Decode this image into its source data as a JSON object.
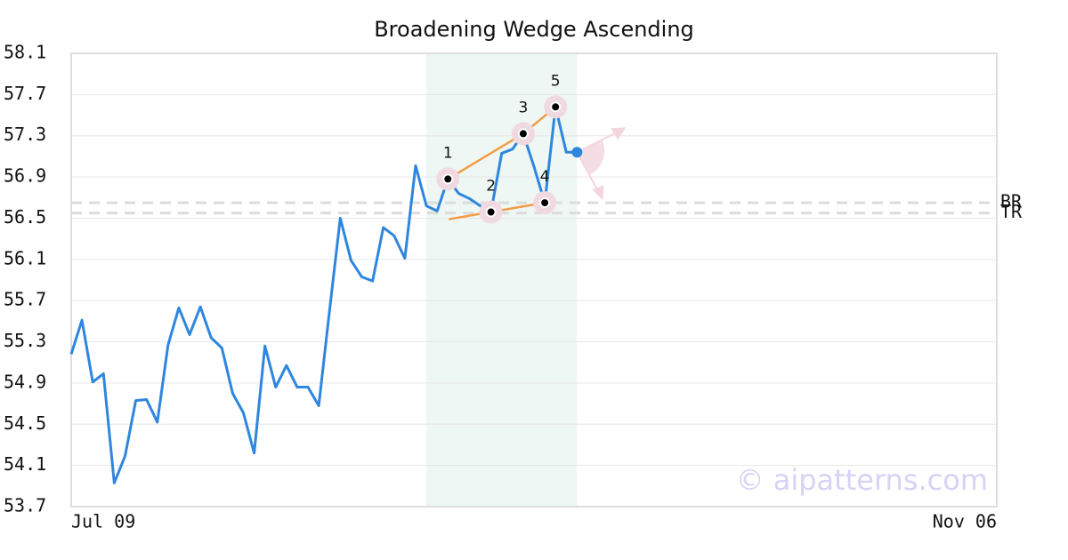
{
  "chart_data": {
    "type": "line",
    "title": "Broadening Wedge Ascending",
    "x": [
      0,
      1,
      2,
      3,
      4,
      5,
      6,
      7,
      8,
      9,
      10,
      11,
      12,
      13,
      14,
      15,
      16,
      17,
      18,
      19,
      20,
      21,
      22,
      23,
      24,
      25,
      26,
      27,
      28,
      29,
      30,
      31,
      32,
      33,
      34,
      35,
      36,
      37,
      38,
      39,
      40,
      41,
      42,
      43,
      44,
      45,
      46,
      47
    ],
    "values": [
      55.18,
      55.51,
      54.91,
      54.99,
      53.93,
      54.19,
      54.73,
      54.74,
      54.52,
      55.27,
      55.63,
      55.37,
      55.64,
      55.34,
      55.24,
      54.8,
      54.61,
      54.22,
      55.26,
      54.86,
      55.07,
      54.86,
      54.86,
      54.68,
      55.6,
      56.5,
      56.09,
      55.93,
      55.89,
      56.41,
      56.33,
      56.11,
      57.01,
      56.62,
      56.57,
      56.88,
      56.74,
      56.69,
      56.62,
      56.56,
      57.13,
      57.17,
      57.32,
      57,
      56.65,
      57.58,
      57.14,
      57.14
    ],
    "color": "#2e86de",
    "xlim": [
      0,
      86
    ],
    "xticks": [
      {
        "value": 0,
        "label": "Jul 09"
      },
      {
        "value": 86,
        "label": "Nov 06"
      }
    ],
    "ylim": [
      53.7,
      58.1
    ],
    "yticks": [
      53.7,
      54.1,
      54.5,
      54.9,
      55.3,
      55.7,
      56.1,
      56.5,
      56.9,
      57.3,
      57.7,
      58.1
    ],
    "grid": true,
    "highlight": [
      33,
      47
    ],
    "pattern": {
      "color": "#f39c45",
      "points": [
        {
          "label": "1",
          "x": 35,
          "y": 56.88
        },
        {
          "label": "2",
          "x": 39,
          "y": 56.56
        },
        {
          "label": "3",
          "x": 42,
          "y": 57.32
        },
        {
          "label": "4",
          "x": 44,
          "y": 56.65
        },
        {
          "label": "5",
          "x": 45,
          "y": 57.58
        }
      ]
    },
    "levels": [
      {
        "name": "BR",
        "value": 56.65
      },
      {
        "name": "TR",
        "value": 56.55
      }
    ],
    "watermark": "© aipatterns.com"
  }
}
